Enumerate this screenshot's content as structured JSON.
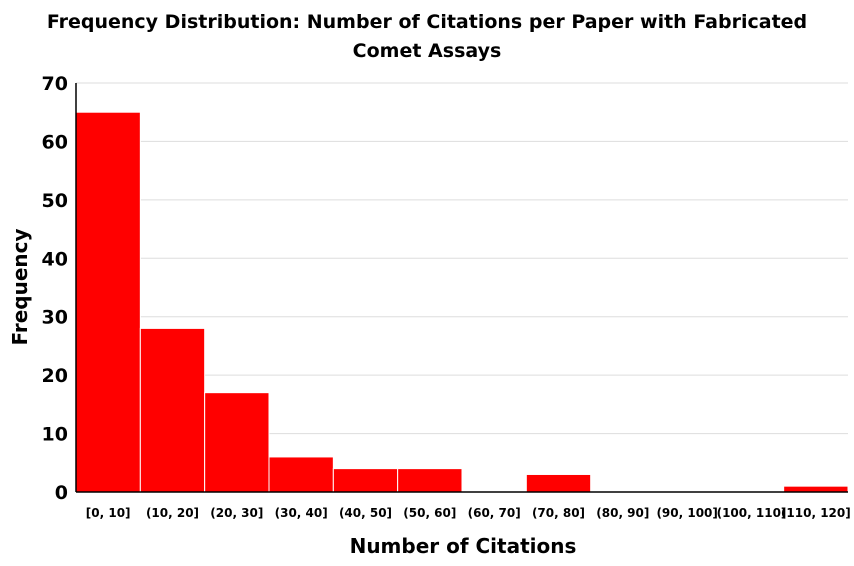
{
  "chart_data": {
    "type": "bar",
    "title_lines": [
      "Frequency Distribution: Number of Citations per Paper with Fabricated",
      "Comet Assays"
    ],
    "xlabel": "Number of Citations",
    "ylabel": "Frequency",
    "categories": [
      "[0, 10]",
      "(10, 20]",
      "(20, 30]",
      "(30, 40]",
      "(40, 50]",
      "(50, 60]",
      "(60, 70]",
      "(70, 80]",
      "(80, 90]",
      "(90, 100]",
      "(100, 110]",
      "(110, 120]"
    ],
    "values": [
      65,
      28,
      17,
      6,
      4,
      4,
      0,
      3,
      0,
      0,
      0,
      1
    ],
    "ylim": [
      0,
      70
    ],
    "yticks": [
      0,
      10,
      20,
      30,
      40,
      50,
      60,
      70
    ],
    "grid": true,
    "bar_color": "#ff0000",
    "grid_color": "#dddddd"
  }
}
